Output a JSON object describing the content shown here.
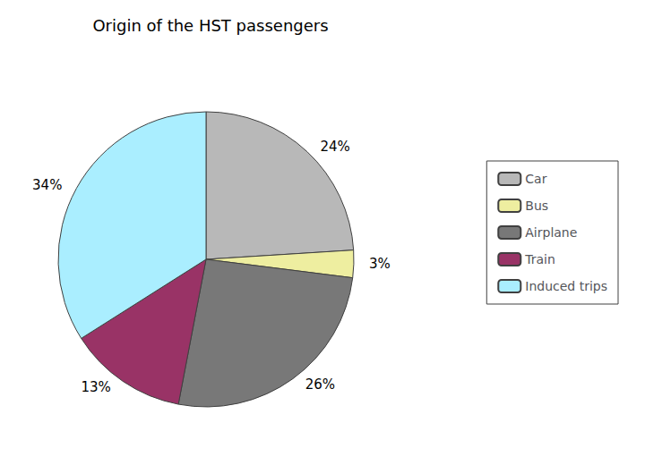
{
  "chart_data": {
    "type": "pie",
    "title": "Origin of the HST passengers",
    "categories": [
      "Car",
      "Bus",
      "Airplane",
      "Train",
      "Induced trips"
    ],
    "values": [
      24,
      3,
      26,
      13,
      34
    ],
    "value_labels": [
      "24%",
      "3%",
      "26%",
      "13%",
      "34%"
    ],
    "colors": [
      "#b8b8b8",
      "#eeeea0",
      "#787878",
      "#993366",
      "#aaeeff"
    ],
    "data_labels": true,
    "legend": "right"
  }
}
